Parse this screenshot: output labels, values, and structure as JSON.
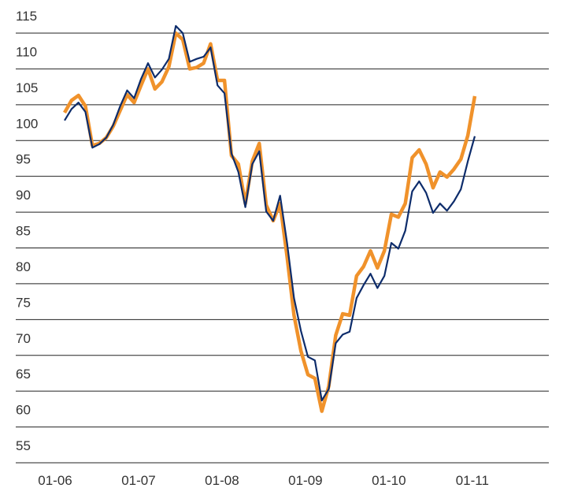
{
  "chart_data": {
    "type": "line",
    "x": [
      "01-06",
      "02-06",
      "03-06",
      "04-06",
      "05-06",
      "06-06",
      "07-06",
      "08-06",
      "09-06",
      "10-06",
      "11-06",
      "12-06",
      "01-07",
      "02-07",
      "03-07",
      "04-07",
      "05-07",
      "06-07",
      "07-07",
      "08-07",
      "09-07",
      "10-07",
      "11-07",
      "12-07",
      "01-08",
      "02-08",
      "03-08",
      "04-08",
      "05-08",
      "06-08",
      "07-08",
      "08-08",
      "09-08",
      "10-08",
      "11-08",
      "12-08",
      "01-09",
      "02-09",
      "03-09",
      "04-09",
      "05-09",
      "06-09",
      "07-09",
      "08-09",
      "09-09",
      "10-09",
      "11-09",
      "12-09",
      "01-10",
      "02-10",
      "03-10",
      "04-10",
      "05-10",
      "06-10",
      "07-10",
      "08-10",
      "09-10",
      "10-10",
      "11-10",
      "12-10"
    ],
    "series": [
      {
        "color": "#f0922b",
        "values": [
          103.9,
          105.6,
          106.3,
          104.8,
          99.3,
          99.6,
          100.4,
          102.0,
          104.2,
          106.4,
          105.3,
          107.7,
          110.0,
          107.2,
          108.2,
          110.3,
          115.0,
          114.1,
          110.0,
          110.2,
          110.8,
          113.5,
          108.4,
          108.4,
          97.9,
          96.7,
          91.2,
          97.1,
          99.6,
          91.0,
          88.8,
          91.2,
          83.8,
          75.6,
          70.6,
          67.3,
          66.8,
          62.2,
          65.7,
          72.8,
          75.8,
          75.6,
          81.1,
          82.4,
          84.6,
          82.2,
          84.6,
          89.7,
          89.3,
          91.2,
          97.6,
          98.7,
          96.7,
          93.4,
          95.6,
          94.9,
          96.0,
          97.4,
          100.7,
          106.2
        ]
      },
      {
        "color": "#0d2c6b",
        "values": [
          102.8,
          104.4,
          105.3,
          104.0,
          99.0,
          99.5,
          100.4,
          102.2,
          104.8,
          107.0,
          105.9,
          108.6,
          110.8,
          108.8,
          109.9,
          111.4,
          116.0,
          115.0,
          111.0,
          111.4,
          111.7,
          113.0,
          107.7,
          106.6,
          98.2,
          95.6,
          90.7,
          96.7,
          98.5,
          90.1,
          88.8,
          92.3,
          85.7,
          78.0,
          73.4,
          69.8,
          69.3,
          63.7,
          65.3,
          71.7,
          72.9,
          73.3,
          78.0,
          79.8,
          81.4,
          79.4,
          81.1,
          85.7,
          84.9,
          87.4,
          92.9,
          94.3,
          92.7,
          89.9,
          91.2,
          90.2,
          91.5,
          93.2,
          97.1,
          100.6
        ]
      }
    ],
    "ylim": [
      55,
      115
    ],
    "yticks": [
      55,
      60,
      65,
      70,
      75,
      80,
      85,
      90,
      95,
      100,
      105,
      110,
      115
    ],
    "xticks": [
      "01-06",
      "01-07",
      "01-08",
      "01-09",
      "01-10",
      "01-11"
    ],
    "grid": true
  }
}
